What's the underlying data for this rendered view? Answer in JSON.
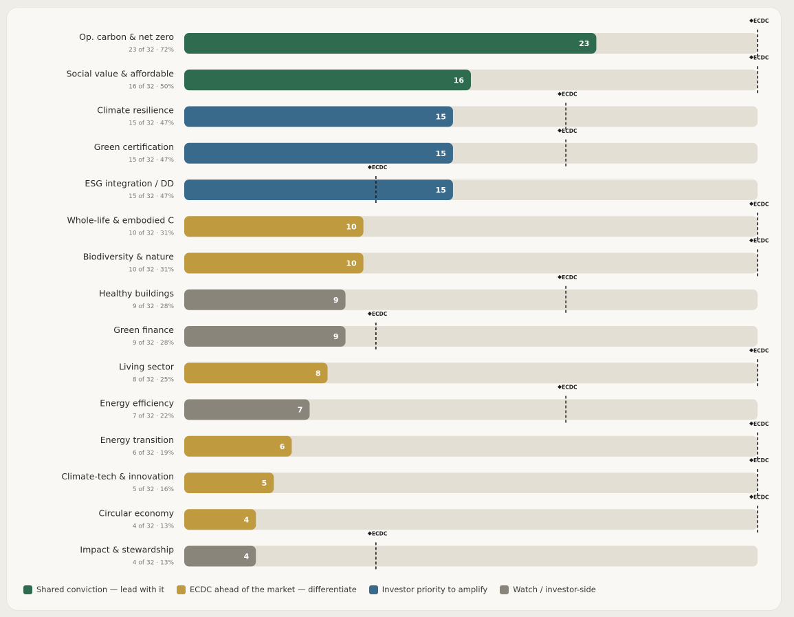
{
  "chart_data": {
    "type": "bar",
    "orientation": "horizontal",
    "xlim": [
      0,
      32
    ],
    "total": 32,
    "marker_label": "ECDC",
    "colors": {
      "shared": "#2e6b4f",
      "ecdc_ahead": "#bf9a3e",
      "investor": "#3a6a8b",
      "watch": "#8a857a",
      "track": "#e3dfd4"
    },
    "bars": [
      {
        "category": "Op. carbon & net zero",
        "value": 23,
        "sub": "23 of 32 · 72%",
        "group": "shared",
        "ecdc": 32
      },
      {
        "category": "Social value & affordable",
        "value": 16,
        "sub": "16 of 32 · 50%",
        "group": "shared",
        "ecdc": 32
      },
      {
        "category": "Climate resilience",
        "value": 15,
        "sub": "15 of 32 · 47%",
        "group": "investor",
        "ecdc": 21.3
      },
      {
        "category": "Green certification",
        "value": 15,
        "sub": "15 of 32 · 47%",
        "group": "investor",
        "ecdc": 21.3
      },
      {
        "category": "ESG integration / DD",
        "value": 15,
        "sub": "15 of 32 · 47%",
        "group": "investor",
        "ecdc": 10.7
      },
      {
        "category": "Whole-life & embodied C",
        "value": 10,
        "sub": "10 of 32 · 31%",
        "group": "ecdc_ahead",
        "ecdc": 32
      },
      {
        "category": "Biodiversity & nature",
        "value": 10,
        "sub": "10 of 32 · 31%",
        "group": "ecdc_ahead",
        "ecdc": 32
      },
      {
        "category": "Healthy buildings",
        "value": 9,
        "sub": "9 of 32 · 28%",
        "group": "watch",
        "ecdc": 21.3
      },
      {
        "category": "Green finance",
        "value": 9,
        "sub": "9 of 32 · 28%",
        "group": "watch",
        "ecdc": 10.7
      },
      {
        "category": "Living sector",
        "value": 8,
        "sub": "8 of 32 · 25%",
        "group": "ecdc_ahead",
        "ecdc": 32
      },
      {
        "category": "Energy efficiency",
        "value": 7,
        "sub": "7 of 32 · 22%",
        "group": "watch",
        "ecdc": 21.3
      },
      {
        "category": "Energy transition",
        "value": 6,
        "sub": "6 of 32 · 19%",
        "group": "ecdc_ahead",
        "ecdc": 32
      },
      {
        "category": "Climate-tech & innovation",
        "value": 5,
        "sub": "5 of 32 · 16%",
        "group": "ecdc_ahead",
        "ecdc": 32
      },
      {
        "category": "Circular economy",
        "value": 4,
        "sub": "4 of 32 · 13%",
        "group": "ecdc_ahead",
        "ecdc": 32
      },
      {
        "category": "Impact & stewardship",
        "value": 4,
        "sub": "4 of 32 · 13%",
        "group": "watch",
        "ecdc": 10.7
      }
    ],
    "legend": [
      {
        "group": "shared",
        "label": "Shared conviction — lead with it"
      },
      {
        "group": "ecdc_ahead",
        "label": "ECDC ahead of the market — differentiate"
      },
      {
        "group": "investor",
        "label": "Investor priority to amplify"
      },
      {
        "group": "watch",
        "label": "Watch / investor-side"
      }
    ],
    "legend_position": "bottom-left"
  }
}
